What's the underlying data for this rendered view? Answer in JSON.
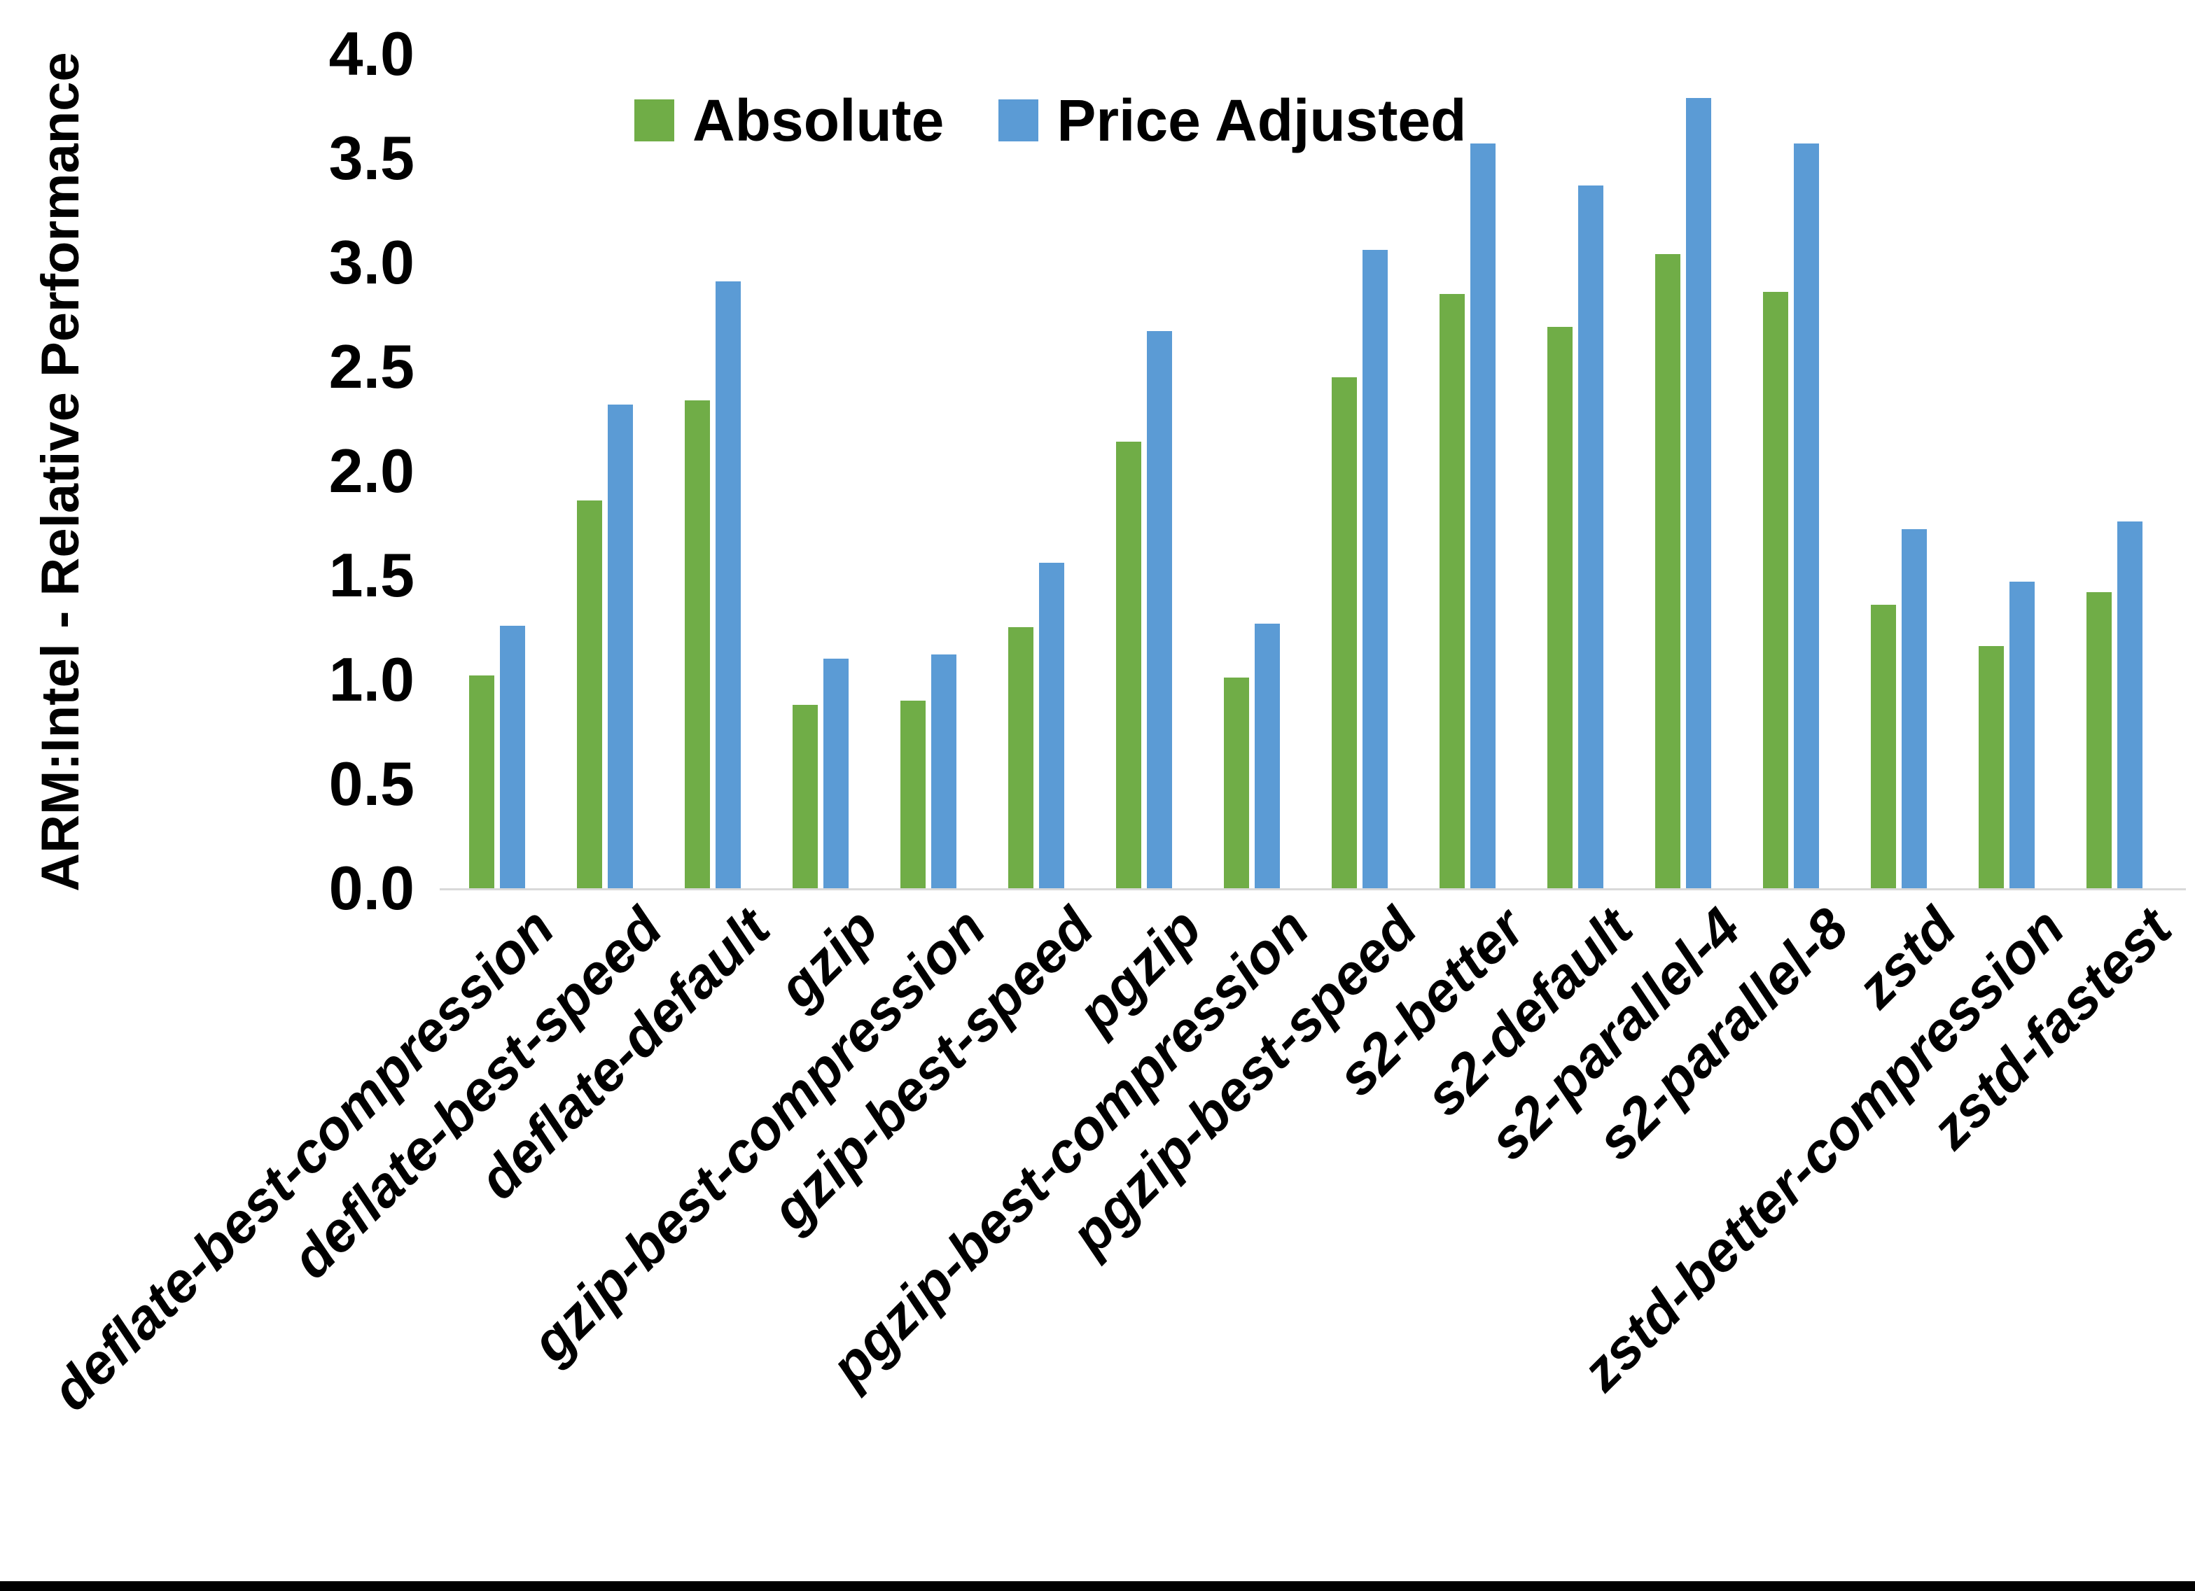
{
  "chart_data": {
    "type": "bar",
    "title": "",
    "xlabel": "",
    "ylabel": "ARM:Intel - Relative Performance",
    "ylim": [
      0.0,
      4.0
    ],
    "ytick_labels": [
      "0.0",
      "0.5",
      "1.0",
      "1.5",
      "2.0",
      "2.5",
      "3.0",
      "3.5",
      "4.0"
    ],
    "grid": false,
    "legend_position": "top-center",
    "categories": [
      "deflate-best-compression",
      "deflate-best-speed",
      "deflate-default",
      "gzip",
      "gzip-best-compression",
      "gzip-best-speed",
      "pgzip",
      "pgzip-best-compression",
      "pgzip-best-speed",
      "s2-better",
      "s2-default",
      "s2-parallel-4",
      "s2-parallel-8",
      "zstd",
      "zstd-better-compression",
      "zstd-fastest"
    ],
    "series": [
      {
        "name": "Absolute",
        "color": "#70AD47",
        "values": [
          1.02,
          1.86,
          2.34,
          0.88,
          0.9,
          1.25,
          2.14,
          1.01,
          2.45,
          2.85,
          2.69,
          3.04,
          2.86,
          1.36,
          1.16,
          1.42
        ]
      },
      {
        "name": "Price Adjusted",
        "color": "#5B9BD5",
        "values": [
          1.26,
          2.32,
          2.91,
          1.1,
          1.12,
          1.56,
          2.67,
          1.27,
          3.06,
          3.57,
          3.37,
          3.79,
          3.57,
          1.72,
          1.47,
          1.76
        ]
      }
    ],
    "axis_line_color": "#d9d9d9",
    "text_color": "#000000"
  }
}
